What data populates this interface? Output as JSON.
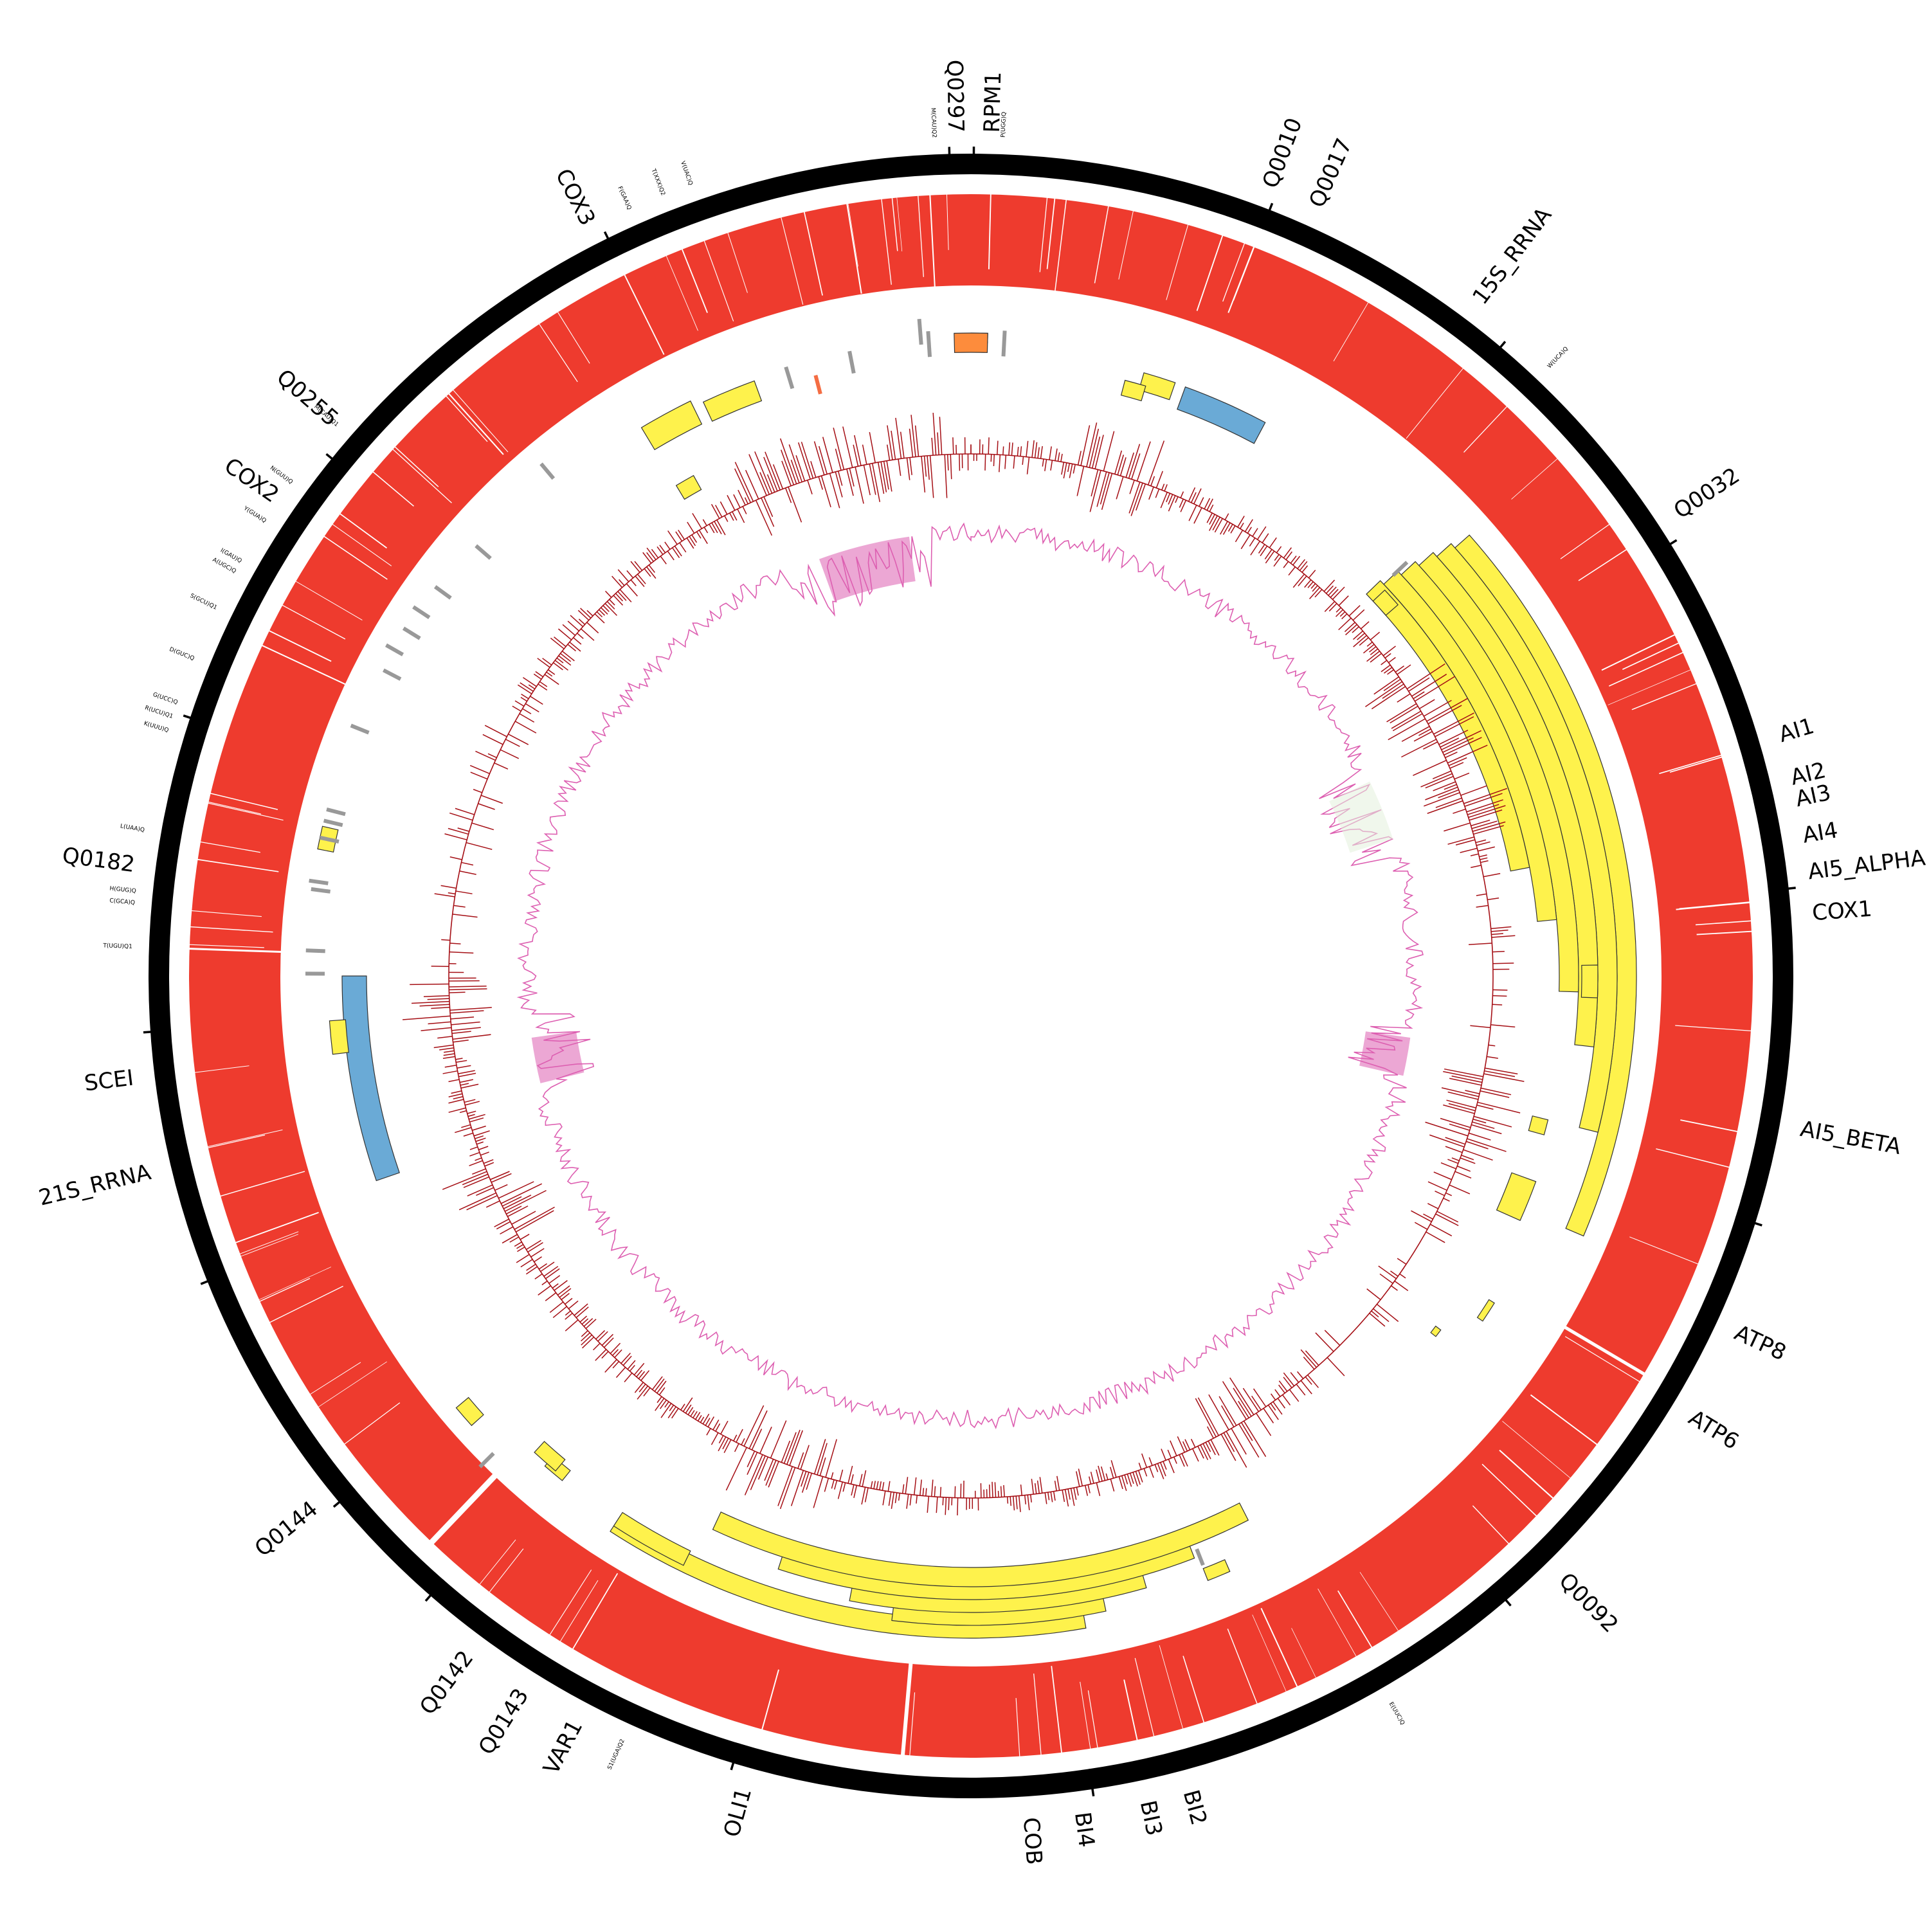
{
  "colors": {
    "backbone": "#000000",
    "coverage": "#ee3b2e",
    "gene_feature": "#fef24c",
    "rrna_feature": "#6aaad6",
    "trna_feature": "#999999",
    "orange_feature": "#fd8c3c",
    "gc_skew_line": "#a50f15",
    "gc_content_fill": "#dd5fb1",
    "light_fill": "#e3f1dc"
  },
  "gene_labels": [
    {
      "text": "Q0297"
    },
    {
      "text": "RPM1"
    },
    {
      "text": "Q0010"
    },
    {
      "text": "Q0017"
    },
    {
      "text": "15S_RRNA"
    },
    {
      "text": "Q0032"
    },
    {
      "text": "AI1"
    },
    {
      "text": "AI2"
    },
    {
      "text": "AI3"
    },
    {
      "text": "AI4"
    },
    {
      "text": "AI5_ALPHA"
    },
    {
      "text": "COX1"
    },
    {
      "text": "AI5_BETA"
    },
    {
      "text": "ATP8"
    },
    {
      "text": "ATP6"
    },
    {
      "text": "Q0092"
    },
    {
      "text": "BI2"
    },
    {
      "text": "BI3"
    },
    {
      "text": "BI4"
    },
    {
      "text": "COB"
    },
    {
      "text": "OLI1"
    },
    {
      "text": "VAR1"
    },
    {
      "text": "Q0143"
    },
    {
      "text": "Q0142"
    },
    {
      "text": "Q0144"
    },
    {
      "text": "21S_RRNA"
    },
    {
      "text": "SCEI"
    },
    {
      "text": "Q0182"
    },
    {
      "text": "COX2"
    },
    {
      "text": "Q0255"
    },
    {
      "text": "COX3"
    }
  ],
  "trna_labels": [
    {
      "text": "M(CAU)Q2"
    },
    {
      "text": "P(UGG)Q"
    },
    {
      "text": "W(UCA)Q"
    },
    {
      "text": "E(UUC)Q"
    },
    {
      "text": "S1(UGA)Q2"
    },
    {
      "text": "T(UGU)Q1"
    },
    {
      "text": "C(GCA)Q"
    },
    {
      "text": "H(GUG)Q"
    },
    {
      "text": "L(UAA)Q"
    },
    {
      "text": "K(UUU)Q"
    },
    {
      "text": "R(UCU)Q1"
    },
    {
      "text": "G(UCC)Q"
    },
    {
      "text": "D(GUC)Q"
    },
    {
      "text": "S(GCU)Q1"
    },
    {
      "text": "A(UGC)Q"
    },
    {
      "text": "I(GAU)Q"
    },
    {
      "text": "Y(GUA)Q"
    },
    {
      "text": "N(GUU)Q"
    },
    {
      "text": "M(CAU)Q1"
    },
    {
      "text": "F(GAA)Q"
    },
    {
      "text": "T(XXX)Q2"
    },
    {
      "text": "V(UAC)Q"
    }
  ]
}
